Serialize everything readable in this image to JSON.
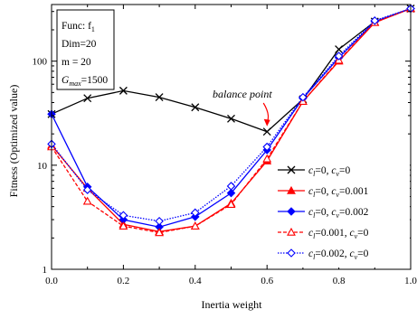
{
  "chart_data": {
    "type": "line",
    "xlabel": "Inertia weight",
    "ylabel": "Fitness (Optimized value)",
    "xlim": [
      0.0,
      1.0
    ],
    "ylim": [
      1,
      350
    ],
    "yscale": "log",
    "x": [
      0.0,
      0.1,
      0.2,
      0.3,
      0.4,
      0.5,
      0.6,
      0.7,
      0.8,
      0.9,
      1.0
    ],
    "xtick_labels": [
      "0.0",
      "0.2",
      "0.4",
      "0.6",
      "0.8",
      "1.0"
    ],
    "ytick_labels": [
      "1",
      "10",
      "100"
    ],
    "info_box": {
      "func": "Func: f",
      "func_sub": "1",
      "dim": "Dim=20",
      "m": "m = 20",
      "gmax": "G",
      "gmax_sub": "max",
      "gmax_val": "=1500"
    },
    "annotation": {
      "text": "balance point",
      "x": 0.6,
      "y": 21
    },
    "legend_position": "lower-right",
    "grid": false,
    "series": [
      {
        "name": "c_l=0, c_v=0",
        "legend": {
          "p1": "c",
          "s1": "l",
          "p2": "=0, ",
          "p3": "c",
          "s2": "v",
          "p4": "=0"
        },
        "color": "#000000",
        "marker": "x",
        "dash": "solid",
        "values": [
          31,
          44,
          52,
          45,
          36,
          28,
          21,
          43,
          130,
          240,
          320
        ]
      },
      {
        "name": "c_l=0, c_v=0.001",
        "legend": {
          "p1": "c",
          "s1": "l",
          "p2": "=0, ",
          "p3": "c",
          "s2": "v",
          "p4": "=0.001"
        },
        "color": "#ff0000",
        "marker": "triangle-filled",
        "dash": "solid",
        "values": [
          15.5,
          6.0,
          2.7,
          2.3,
          2.6,
          4.3,
          11,
          41,
          100,
          235,
          320
        ]
      },
      {
        "name": "c_l=0, c_v=0.002",
        "legend": {
          "p1": "c",
          "s1": "l",
          "p2": "=0, ",
          "p3": "c",
          "s2": "v",
          "p4": "=0.002"
        },
        "color": "#0000ff",
        "marker": "diamond-filled",
        "dash": "solid",
        "values": [
          31,
          6.2,
          3.0,
          2.55,
          3.2,
          5.4,
          14,
          44,
          108,
          240,
          320
        ]
      },
      {
        "name": "c_l=0.001, c_v=0",
        "legend": {
          "p1": "c",
          "s1": "l",
          "p2": "=0.001, ",
          "p3": "c",
          "s2": "v",
          "p4": "=0"
        },
        "color": "#ff0000",
        "marker": "triangle-open",
        "dash": "dashed",
        "values": [
          15,
          4.5,
          2.6,
          2.25,
          2.6,
          4.2,
          11.5,
          41,
          102,
          235,
          320
        ]
      },
      {
        "name": "c_l=0.002, c_v=0",
        "legend": {
          "p1": "c",
          "s1": "l",
          "p2": "=0.002, ",
          "p3": "c",
          "s2": "v",
          "p4": "=0"
        },
        "color": "#0000ff",
        "marker": "diamond-open",
        "dash": "dotted",
        "values": [
          16,
          5.8,
          3.3,
          2.9,
          3.5,
          6.3,
          15,
          45,
          112,
          245,
          320
        ]
      }
    ]
  }
}
